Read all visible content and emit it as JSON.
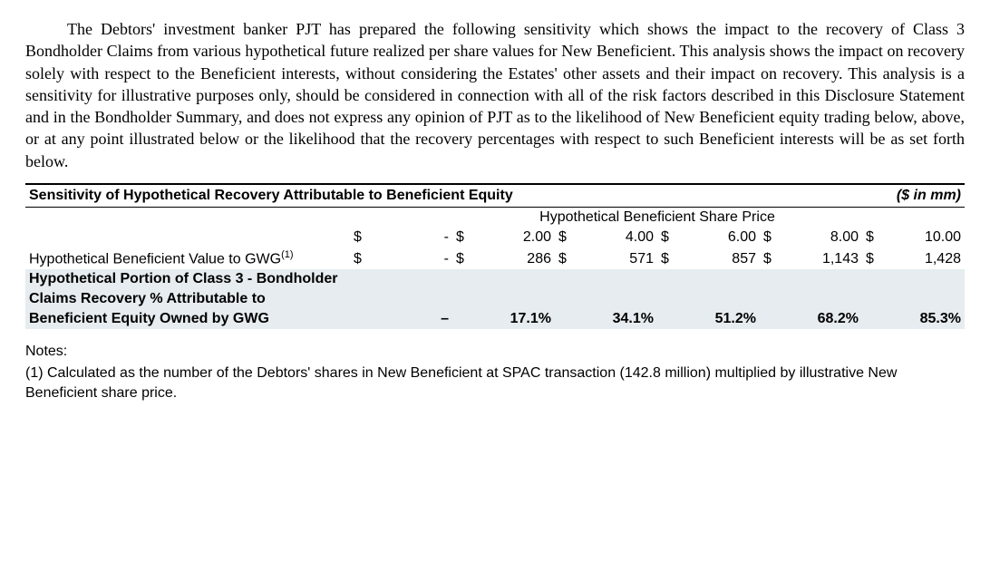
{
  "paragraph": "The Debtors' investment banker PJT has prepared the following sensitivity which shows the impact to the recovery of Class 3 Bondholder Claims from various hypothetical future realized per share values for New Beneficient. This analysis shows the impact on recovery solely with respect to the Beneficient interests, without considering the Estates' other assets and their impact on recovery. This analysis is a sensitivity for illustrative purposes only, should be considered in connection with all of the risk factors described in this Disclosure Statement and in the Bondholder Summary, and does not express any opinion of PJT as to the likelihood of New Beneficient equity trading below, above, or at any point illustrated below or the likelihood that the recovery percentages with respect to such Beneficient interests will be as set forth below.",
  "table": {
    "title": "Sensitivity of Hypothetical Recovery Attributable to Beneficient Equity",
    "unit_note": "($ in mm)",
    "header": "Hypothetical Beneficient Share Price",
    "currency": "$",
    "price_row": {
      "v0": "-",
      "v1": "2.00",
      "v2": "4.00",
      "v3": "6.00",
      "v4": "8.00",
      "v5": "10.00"
    },
    "value_row": {
      "label": "Hypothetical Beneficient Value to GWG",
      "sup": "(1)",
      "v0": "-",
      "v1": "286",
      "v2": "571",
      "v3": "857",
      "v4": "1,143",
      "v5": "1,428"
    },
    "pct_row": {
      "label_l1": "Hypothetical Portion of Class 3 - Bondholder",
      "label_l2": "Claims Recovery % Attributable to",
      "label_l3": "Beneficient Equity Owned by GWG",
      "v0": "–",
      "v1": "17.1%",
      "v2": "34.1%",
      "v3": "51.2%",
      "v4": "68.2%",
      "v5": "85.3%"
    }
  },
  "notes": {
    "head": "Notes:",
    "n1": "(1) Calculated as the number of the Debtors' shares in New Beneficient at SPAC transaction (142.8 million) multiplied by illustrative New Beneficient share price."
  }
}
